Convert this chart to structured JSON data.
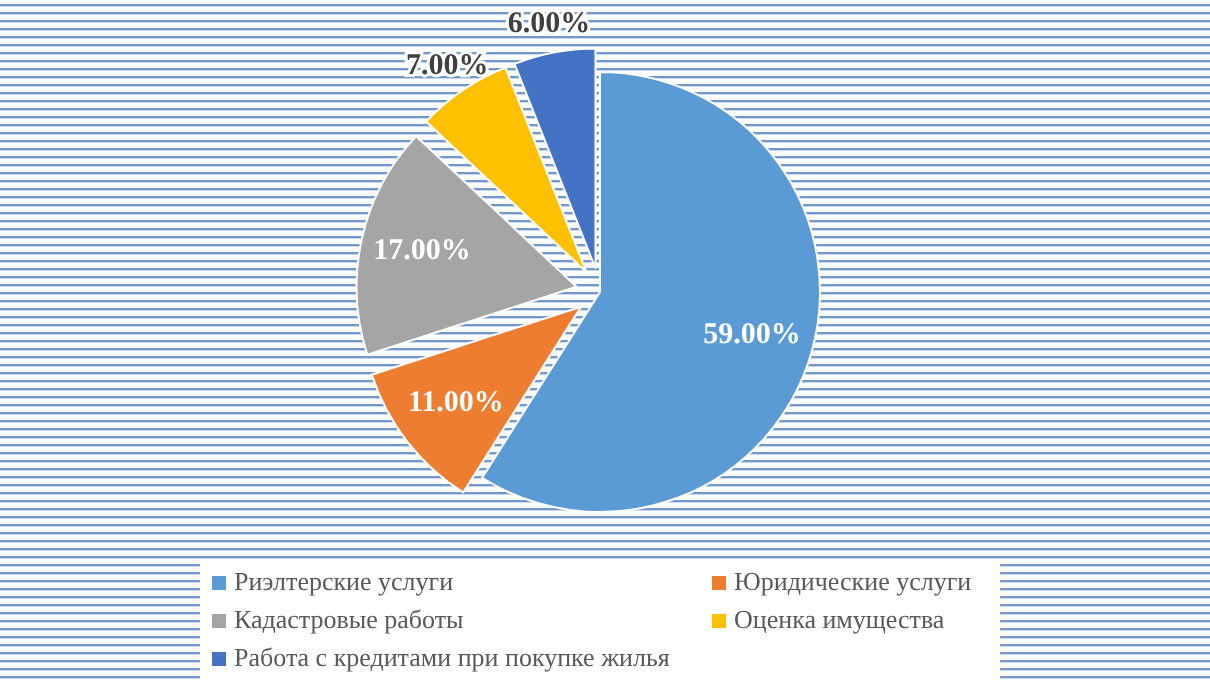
{
  "chart_data": {
    "type": "pie",
    "categories": [
      "Риэлтерские услуги",
      "Юридические услуги",
      "Кадастровые работы",
      "Оценка имущества",
      "Работа с кредитами при покупке жилья"
    ],
    "values": [
      59,
      11,
      17,
      7,
      6
    ],
    "colors": [
      "#5b9bd5",
      "#ed7d31",
      "#a5a5a5",
      "#ffc000",
      "#4472c4"
    ],
    "value_labels": [
      "59.00%",
      "11.00%",
      "17.00%",
      "7.00%",
      "6.00%"
    ],
    "legend": "bottom"
  }
}
